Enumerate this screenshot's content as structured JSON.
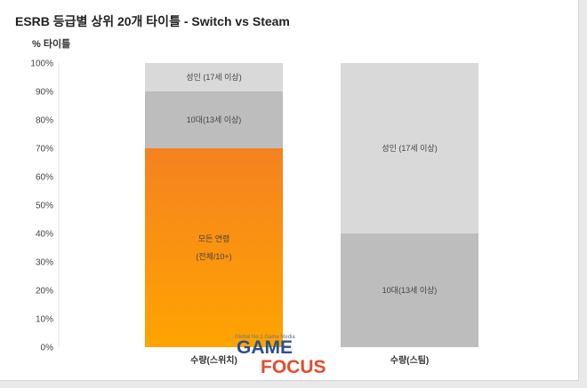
{
  "title": "ESRB 등급별 상위 20개 타이틀  - Switch vs Steam",
  "chart_data": {
    "type": "bar",
    "stacked": true,
    "ylabel": "% 타이틀",
    "ylim": [
      0,
      100
    ],
    "yticks": [
      "0%",
      "10%",
      "20%",
      "30%",
      "40%",
      "50%",
      "60%",
      "70%",
      "80%",
      "90%",
      "100%"
    ],
    "categories": [
      "수량(스위치)",
      "수량(스팀)"
    ],
    "series": [
      {
        "name": "모든 연령 (전체/10+)",
        "label_lines": [
          "모든 연령",
          "(전체/10+)"
        ],
        "values": [
          70,
          0
        ],
        "color": "#f7941d"
      },
      {
        "name": "10대(13세 이상)",
        "label_lines": [
          "10대(13세 이상)"
        ],
        "values": [
          20,
          40
        ],
        "color": "#bdbdbd"
      },
      {
        "name": "성인 (17세 이상)",
        "label_lines": [
          "성인 (17세 이상)"
        ],
        "values": [
          10,
          60
        ],
        "color": "#d9d9d9"
      }
    ],
    "grid": false,
    "legend": "none"
  },
  "watermark": {
    "tagline": "Global No.1 Game Media",
    "word1": "GAME",
    "word2": "FOCUS"
  },
  "colors": {
    "orange_top": "#f58220",
    "orange_bottom": "#ffa400",
    "teen": "#bdbdbd",
    "mature": "#d9d9d9",
    "watermark_blue": "#2b4f8e",
    "watermark_red": "#e64a2e"
  }
}
